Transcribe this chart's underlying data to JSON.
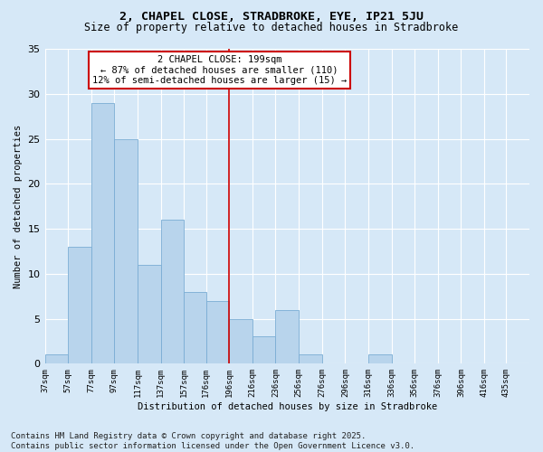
{
  "title": "2, CHAPEL CLOSE, STRADBROKE, EYE, IP21 5JU",
  "subtitle": "Size of property relative to detached houses in Stradbroke",
  "xlabel": "Distribution of detached houses by size in Stradbroke",
  "ylabel": "Number of detached properties",
  "background_color": "#d6e8f7",
  "bar_color": "#b8d4ec",
  "bar_edge_color": "#7aadd4",
  "vline_x": 196,
  "vline_color": "#cc0000",
  "annotation_lines": [
    "2 CHAPEL CLOSE: 199sqm",
    "← 87% of detached houses are smaller (110)",
    "12% of semi-detached houses are larger (15) →"
  ],
  "bins_left": [
    37,
    57,
    77,
    97,
    117,
    137,
    157,
    176,
    196,
    216,
    236,
    256,
    276,
    296,
    316,
    336,
    356,
    376,
    396,
    416
  ],
  "bins_right": [
    57,
    77,
    97,
    117,
    137,
    157,
    176,
    196,
    216,
    236,
    256,
    276,
    296,
    316,
    336,
    356,
    376,
    396,
    416,
    435
  ],
  "counts": [
    1,
    13,
    29,
    25,
    11,
    16,
    8,
    7,
    5,
    3,
    6,
    1,
    0,
    0,
    1,
    0,
    0,
    0,
    0,
    0
  ],
  "tick_labels": [
    "37sqm",
    "57sqm",
    "77sqm",
    "97sqm",
    "117sqm",
    "137sqm",
    "157sqm",
    "176sqm",
    "196sqm",
    "216sqm",
    "236sqm",
    "256sqm",
    "276sqm",
    "296sqm",
    "316sqm",
    "336sqm",
    "356sqm",
    "376sqm",
    "396sqm",
    "416sqm",
    "435sqm"
  ],
  "tick_positions": [
    37,
    57,
    77,
    97,
    117,
    137,
    157,
    176,
    196,
    216,
    236,
    256,
    276,
    296,
    316,
    336,
    356,
    376,
    396,
    416,
    435
  ],
  "ylim": [
    0,
    35
  ],
  "yticks": [
    0,
    5,
    10,
    15,
    20,
    25,
    30,
    35
  ],
  "xlim": [
    37,
    455
  ],
  "footer": "Contains HM Land Registry data © Crown copyright and database right 2025.\nContains public sector information licensed under the Open Government Licence v3.0.",
  "title_fontsize": 9.5,
  "subtitle_fontsize": 8.5,
  "axis_label_fontsize": 7.5,
  "tick_fontsize": 6.5,
  "annotation_fontsize": 7.5,
  "footer_fontsize": 6.5,
  "ytick_fontsize": 8
}
